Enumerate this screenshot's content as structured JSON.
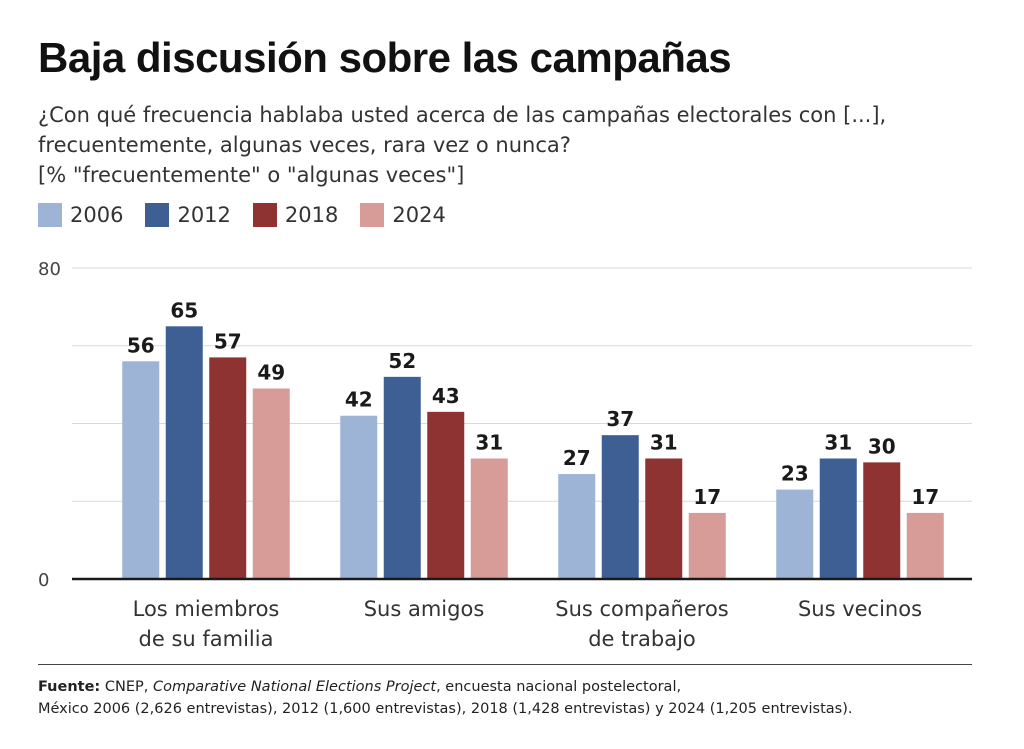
{
  "header": {
    "title": "Baja discusión sobre las campañas",
    "subtitle_line1": "¿Con qué frecuencia hablaba usted acerca de las campañas electorales con [...],",
    "subtitle_line2": "frecuentemente, algunas veces, rara vez o nunca?",
    "subtitle_line3": "[% \"frecuentemente\" o \"algunas veces\"]"
  },
  "legend": [
    {
      "label": "2006",
      "color": "#9db4d6"
    },
    {
      "label": "2012",
      "color": "#3d5f94"
    },
    {
      "label": "2018",
      "color": "#8e3232"
    },
    {
      "label": "2024",
      "color": "#d79c98"
    }
  ],
  "footer": {
    "source_label": "Fuente:",
    "source_org": "CNEP,",
    "source_project": "Comparative National Elections Project",
    "source_rest": ", encuesta nacional postelectoral,",
    "line2": "México 2006 (2,626 entrevistas), 2012 (1,600 entrevistas), 2018 (1,428 entrevistas) y 2024 (1,205 entrevistas)."
  },
  "chart_data": {
    "type": "bar",
    "title": "Baja discusión sobre las campañas",
    "xlabel": "",
    "ylabel": "%",
    "ylim": [
      0,
      80
    ],
    "yticks": [
      0,
      80
    ],
    "gridlines": [
      20,
      40,
      60,
      80
    ],
    "categories": [
      [
        "Los miembros",
        "de su familia"
      ],
      [
        "Sus amigos"
      ],
      [
        "Sus compañeros",
        "de trabajo"
      ],
      [
        "Sus vecinos"
      ]
    ],
    "series": [
      {
        "name": "2006",
        "color": "#9db4d6",
        "values": [
          56,
          42,
          27,
          23
        ]
      },
      {
        "name": "2012",
        "color": "#3d5f94",
        "values": [
          65,
          52,
          37,
          31
        ]
      },
      {
        "name": "2018",
        "color": "#8e3232",
        "values": [
          57,
          43,
          31,
          30
        ]
      },
      {
        "name": "2024",
        "color": "#d79c98",
        "values": [
          49,
          31,
          17,
          17
        ]
      }
    ],
    "legend_position": "top-left"
  }
}
